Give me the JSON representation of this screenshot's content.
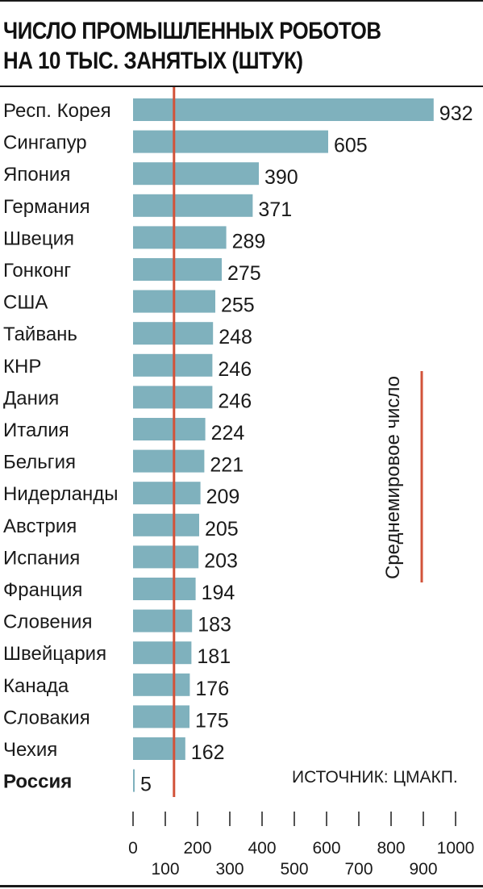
{
  "title_line1": "ЧИСЛО ПРОМЫШЛЕННЫХ РОБОТОВ",
  "title_line2": "НА 10 ТЫС. ЗАНЯТЫХ (ШТУК)",
  "source": "ИСТОЧНИК: ЦМАКП.",
  "average_label": "Среднемировое число",
  "colors": {
    "bar": "#7fb1bd",
    "average": "#d2533a",
    "text": "#1a1a1a"
  },
  "chart_data": {
    "type": "bar",
    "orientation": "horizontal",
    "title": "ЧИСЛО ПРОМЫШЛЕННЫХ РОБОТОВ НА 10 ТЫС. ЗАНЯТЫХ (ШТУК)",
    "categories": [
      "Респ. Корея",
      "Сингапур",
      "Япония",
      "Германия",
      "Швеция",
      "Гонконг",
      "США",
      "Тайвань",
      "КНР",
      "Дания",
      "Италия",
      "Бельгия",
      "Нидерланды",
      "Австрия",
      "Испания",
      "Франция",
      "Словения",
      "Швейцария",
      "Канада",
      "Словакия",
      "Чехия",
      "Россия"
    ],
    "values": [
      932,
      605,
      390,
      371,
      289,
      275,
      255,
      248,
      246,
      246,
      224,
      221,
      209,
      205,
      203,
      194,
      183,
      181,
      176,
      175,
      162,
      5
    ],
    "highlight": "Россия",
    "average_value": 127,
    "xlim": [
      0,
      1000
    ],
    "ticks_top": [
      "0",
      "200",
      "400",
      "600",
      "800",
      "1000"
    ],
    "ticks_bottom": [
      "100",
      "300",
      "500",
      "700",
      "900"
    ],
    "xlabel": "",
    "ylabel": "",
    "grid": false,
    "legend": "none"
  }
}
